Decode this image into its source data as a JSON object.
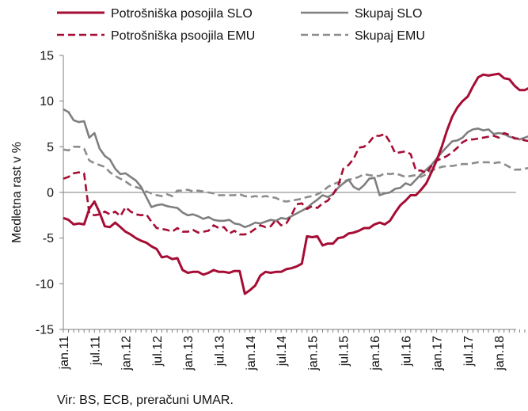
{
  "chart_data": {
    "type": "line",
    "title": "",
    "ylabel": "Medletna rast v %",
    "ylim": [
      -15,
      15
    ],
    "yticks": [
      15,
      10,
      5,
      0,
      -5,
      -10,
      -15
    ],
    "x_start": "2011-01",
    "x_tick_labels": [
      "jan.11",
      "jul.11",
      "jan.12",
      "jul.12",
      "jan.13",
      "jul.13",
      "jan.14",
      "jul.14",
      "jan.15",
      "jul.15",
      "jan.16",
      "jul.16",
      "jan.17",
      "jul.17",
      "jan.18"
    ],
    "legend": {
      "placement": "top"
    },
    "grid": false,
    "source_note": "Vir: BS, ECB, preračuni UMAR.",
    "series": [
      {
        "name": "Potrošniška posojila SLO",
        "color": "#a50d35",
        "dash": "solid",
        "values": [
          -2.8,
          -3.0,
          -3.5,
          -3.4,
          -3.5,
          -1.8,
          -1.0,
          -2.2,
          -3.7,
          -3.8,
          -3.3,
          -3.8,
          -4.3,
          -4.6,
          -5.0,
          -5.3,
          -5.5,
          -5.9,
          -6.2,
          -7.1,
          -7.0,
          -7.3,
          -7.2,
          -8.5,
          -8.8,
          -8.7,
          -8.7,
          -9.0,
          -8.8,
          -8.5,
          -8.7,
          -8.7,
          -8.8,
          -8.6,
          -8.6,
          -11.1,
          -10.7,
          -10.2,
          -9.1,
          -8.7,
          -8.8,
          -8.7,
          -8.7,
          -8.4,
          -8.3,
          -8.1,
          -7.8,
          -4.8,
          -4.9,
          -4.8,
          -5.8,
          -5.6,
          -5.6,
          -5.0,
          -4.9,
          -4.5,
          -4.4,
          -4.2,
          -3.9,
          -3.9,
          -3.5,
          -3.3,
          -3.5,
          -3.1,
          -2.2,
          -1.4,
          -0.9,
          -0.3,
          -0.3,
          0.3,
          1.0,
          2.2,
          3.5,
          5.0,
          6.8,
          8.3,
          9.3,
          10.0,
          10.5,
          11.6,
          12.6,
          12.9,
          12.8,
          12.9,
          13.0,
          12.5,
          12.4,
          11.7,
          11.2,
          11.2,
          11.5
        ]
      },
      {
        "name": "Skupaj SLO",
        "color": "#7f7f7f",
        "dash": "solid",
        "values": [
          9.1,
          8.8,
          7.9,
          7.7,
          7.8,
          6.0,
          6.5,
          4.8,
          4.0,
          3.6,
          2.6,
          2.0,
          2.1,
          1.7,
          1.3,
          0.6,
          -0.5,
          -1.6,
          -1.4,
          -1.3,
          -1.5,
          -1.6,
          -1.7,
          -2.2,
          -2.5,
          -2.4,
          -2.6,
          -2.9,
          -2.7,
          -3.0,
          -3.1,
          -3.1,
          -3.0,
          -3.4,
          -3.5,
          -3.8,
          -3.6,
          -3.3,
          -3.4,
          -3.2,
          -3.0,
          -3.1,
          -2.8,
          -2.9,
          -2.6,
          -2.3,
          -2.0,
          -1.7,
          -1.2,
          -0.8,
          -0.3,
          -0.5,
          -0.2,
          0.5,
          1.0,
          1.4,
          0.6,
          0.3,
          0.8,
          1.5,
          1.6,
          -0.3,
          -0.1,
          0.0,
          0.4,
          0.5,
          1.0,
          0.8,
          1.4,
          2.0,
          2.5,
          3.0,
          3.7,
          4.4,
          5.0,
          5.6,
          5.7,
          6.0,
          6.6,
          6.9,
          7.0,
          6.8,
          6.9,
          6.4,
          6.5,
          6.4,
          6.1,
          6.0,
          5.8,
          6.0,
          6.2
        ]
      },
      {
        "name": "Potrošniška psoojila EMU",
        "color": "#a50d35",
        "dash": "dashed",
        "values": [
          1.5,
          1.7,
          2.1,
          2.2,
          2.1,
          -2.3,
          -2.5,
          -2.4,
          -2.1,
          -2.4,
          -2.1,
          -2.6,
          -1.6,
          -2.1,
          -2.4,
          -2.5,
          -2.4,
          -3.2,
          -3.9,
          -4.0,
          -4.1,
          -4.3,
          -3.9,
          -4.3,
          -4.3,
          -4.1,
          -4.4,
          -4.3,
          -4.2,
          -3.6,
          -3.9,
          -3.8,
          -4.5,
          -4.2,
          -4.6,
          -4.6,
          -4.4,
          -4.0,
          -3.6,
          -3.8,
          -3.7,
          -3.0,
          -3.6,
          -3.4,
          -2.5,
          -1.3,
          -1.2,
          -1.8,
          -1.5,
          -1.7,
          -1.2,
          -0.9,
          -0.2,
          0.7,
          2.6,
          3.0,
          3.7,
          4.9,
          5.0,
          5.5,
          6.2,
          6.2,
          6.4,
          5.5,
          4.3,
          4.4,
          4.5,
          4.2,
          2.4,
          2.4,
          2.1,
          2.9,
          3.5,
          3.7,
          4.0,
          4.4,
          4.9,
          5.5,
          5.8,
          5.8,
          5.9,
          6.0,
          6.1,
          6.2,
          6.0,
          6.5,
          6.3,
          5.9,
          5.9,
          5.7,
          5.6
        ]
      },
      {
        "name": "Skupaj EMU",
        "color": "#8c8c8c",
        "dash": "dashed",
        "values": [
          4.7,
          4.6,
          5.0,
          5.0,
          4.8,
          3.5,
          3.2,
          3.0,
          2.8,
          2.2,
          1.8,
          1.5,
          1.2,
          0.8,
          0.6,
          0.4,
          0.1,
          -0.1,
          -0.3,
          -0.4,
          -0.2,
          -0.4,
          0.2,
          0.2,
          0.3,
          0.1,
          0.2,
          0.1,
          0.0,
          -0.1,
          -0.3,
          -0.3,
          -0.3,
          -0.3,
          -0.2,
          -0.4,
          -0.5,
          -0.4,
          -0.5,
          -0.4,
          -0.5,
          -0.6,
          -0.9,
          -1.0,
          -0.9,
          -0.8,
          -0.7,
          -0.5,
          -0.4,
          -0.2,
          0.1,
          0.6,
          0.9,
          1.1,
          1.2,
          1.4,
          1.5,
          1.7,
          2.0,
          1.9,
          1.8,
          1.8,
          2.1,
          2.0,
          2.1,
          1.9,
          1.7,
          1.8,
          1.9,
          1.7,
          2.0,
          2.4,
          2.6,
          2.8,
          2.9,
          2.9,
          3.0,
          3.1,
          3.1,
          3.2,
          3.3,
          3.3,
          3.3,
          3.2,
          3.3,
          3.1,
          2.8,
          2.5,
          2.5,
          2.6,
          2.7
        ]
      }
    ]
  }
}
